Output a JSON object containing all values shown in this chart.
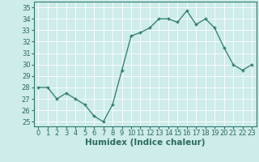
{
  "x": [
    0,
    1,
    2,
    3,
    4,
    5,
    6,
    7,
    8,
    9,
    10,
    11,
    12,
    13,
    14,
    15,
    16,
    17,
    18,
    19,
    20,
    21,
    22,
    23
  ],
  "y": [
    28,
    28,
    27,
    27.5,
    27,
    26.5,
    25.5,
    25,
    26.5,
    29.5,
    32.5,
    32.8,
    33.2,
    34,
    34,
    33.7,
    34.7,
    33.5,
    34,
    33.2,
    31.5,
    30,
    29.5,
    30
  ],
  "line_color": "#2d7a6b",
  "marker": "+",
  "marker_size": 3,
  "marker_lw": 1.0,
  "line_width": 0.9,
  "bg_color": "#cdecea",
  "grid_color": "#ffffff",
  "grid_lw": 0.6,
  "tick_color": "#2d6b5a",
  "xlabel": "Humidex (Indice chaleur)",
  "ylabel_ticks": [
    25,
    26,
    27,
    28,
    29,
    30,
    31,
    32,
    33,
    34,
    35
  ],
  "ylim": [
    24.6,
    35.5
  ],
  "xlim": [
    -0.5,
    23.5
  ],
  "font_size": 6.0,
  "xlabel_size": 7.5,
  "spine_color": "#2d7a6b",
  "spine_lw": 0.8
}
